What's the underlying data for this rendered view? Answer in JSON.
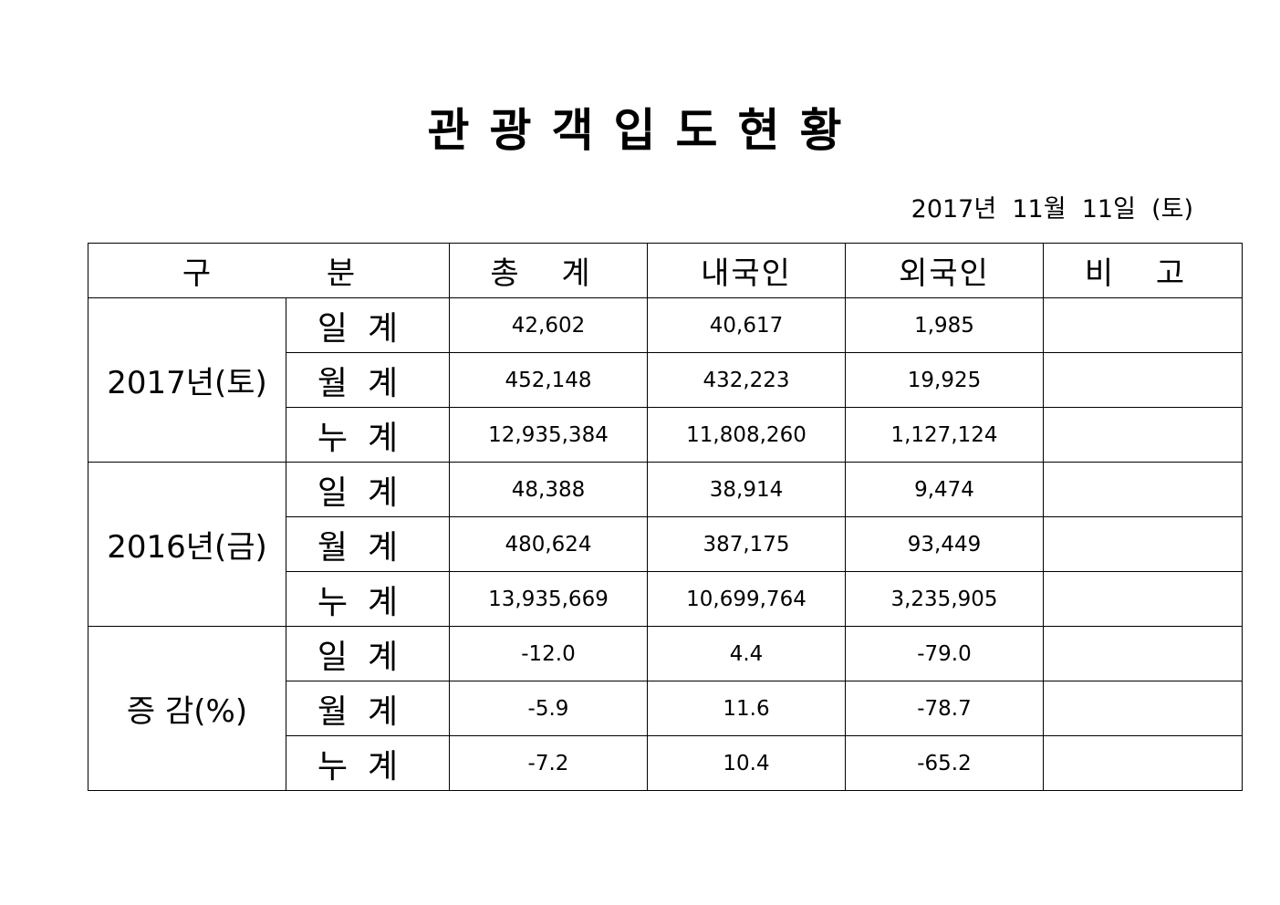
{
  "title": "관광객입도현황",
  "date": "2017년  11월  11일  (토)",
  "header": {
    "category": "구    분",
    "total": "총   계",
    "domestic": "내국인",
    "foreign": "외국인",
    "note": "비  고"
  },
  "groups": [
    {
      "label": "2017년(토)",
      "rows": [
        {
          "label": "일계",
          "total": "42,602",
          "domestic": "40,617",
          "foreign": "1,985",
          "note": ""
        },
        {
          "label": "월계",
          "total": "452,148",
          "domestic": "432,223",
          "foreign": "19,925",
          "note": ""
        },
        {
          "label": "누계",
          "total": "12,935,384",
          "domestic": "11,808,260",
          "foreign": "1,127,124",
          "note": ""
        }
      ]
    },
    {
      "label": "2016년(금)",
      "rows": [
        {
          "label": "일계",
          "total": "48,388",
          "domestic": "38,914",
          "foreign": "9,474",
          "note": ""
        },
        {
          "label": "월계",
          "total": "480,624",
          "domestic": "387,175",
          "foreign": "93,449",
          "note": ""
        },
        {
          "label": "누계",
          "total": "13,935,669",
          "domestic": "10,699,764",
          "foreign": "3,235,905",
          "note": ""
        }
      ]
    },
    {
      "label": "증 감(%)",
      "rows": [
        {
          "label": "일계",
          "total": "-12.0",
          "domestic": "4.4",
          "foreign": "-79.0",
          "note": ""
        },
        {
          "label": "월계",
          "total": "-5.9",
          "domestic": "11.6",
          "foreign": "-78.7",
          "note": ""
        },
        {
          "label": "누계",
          "total": "-7.2",
          "domestic": "10.4",
          "foreign": "-65.2",
          "note": ""
        }
      ]
    }
  ]
}
